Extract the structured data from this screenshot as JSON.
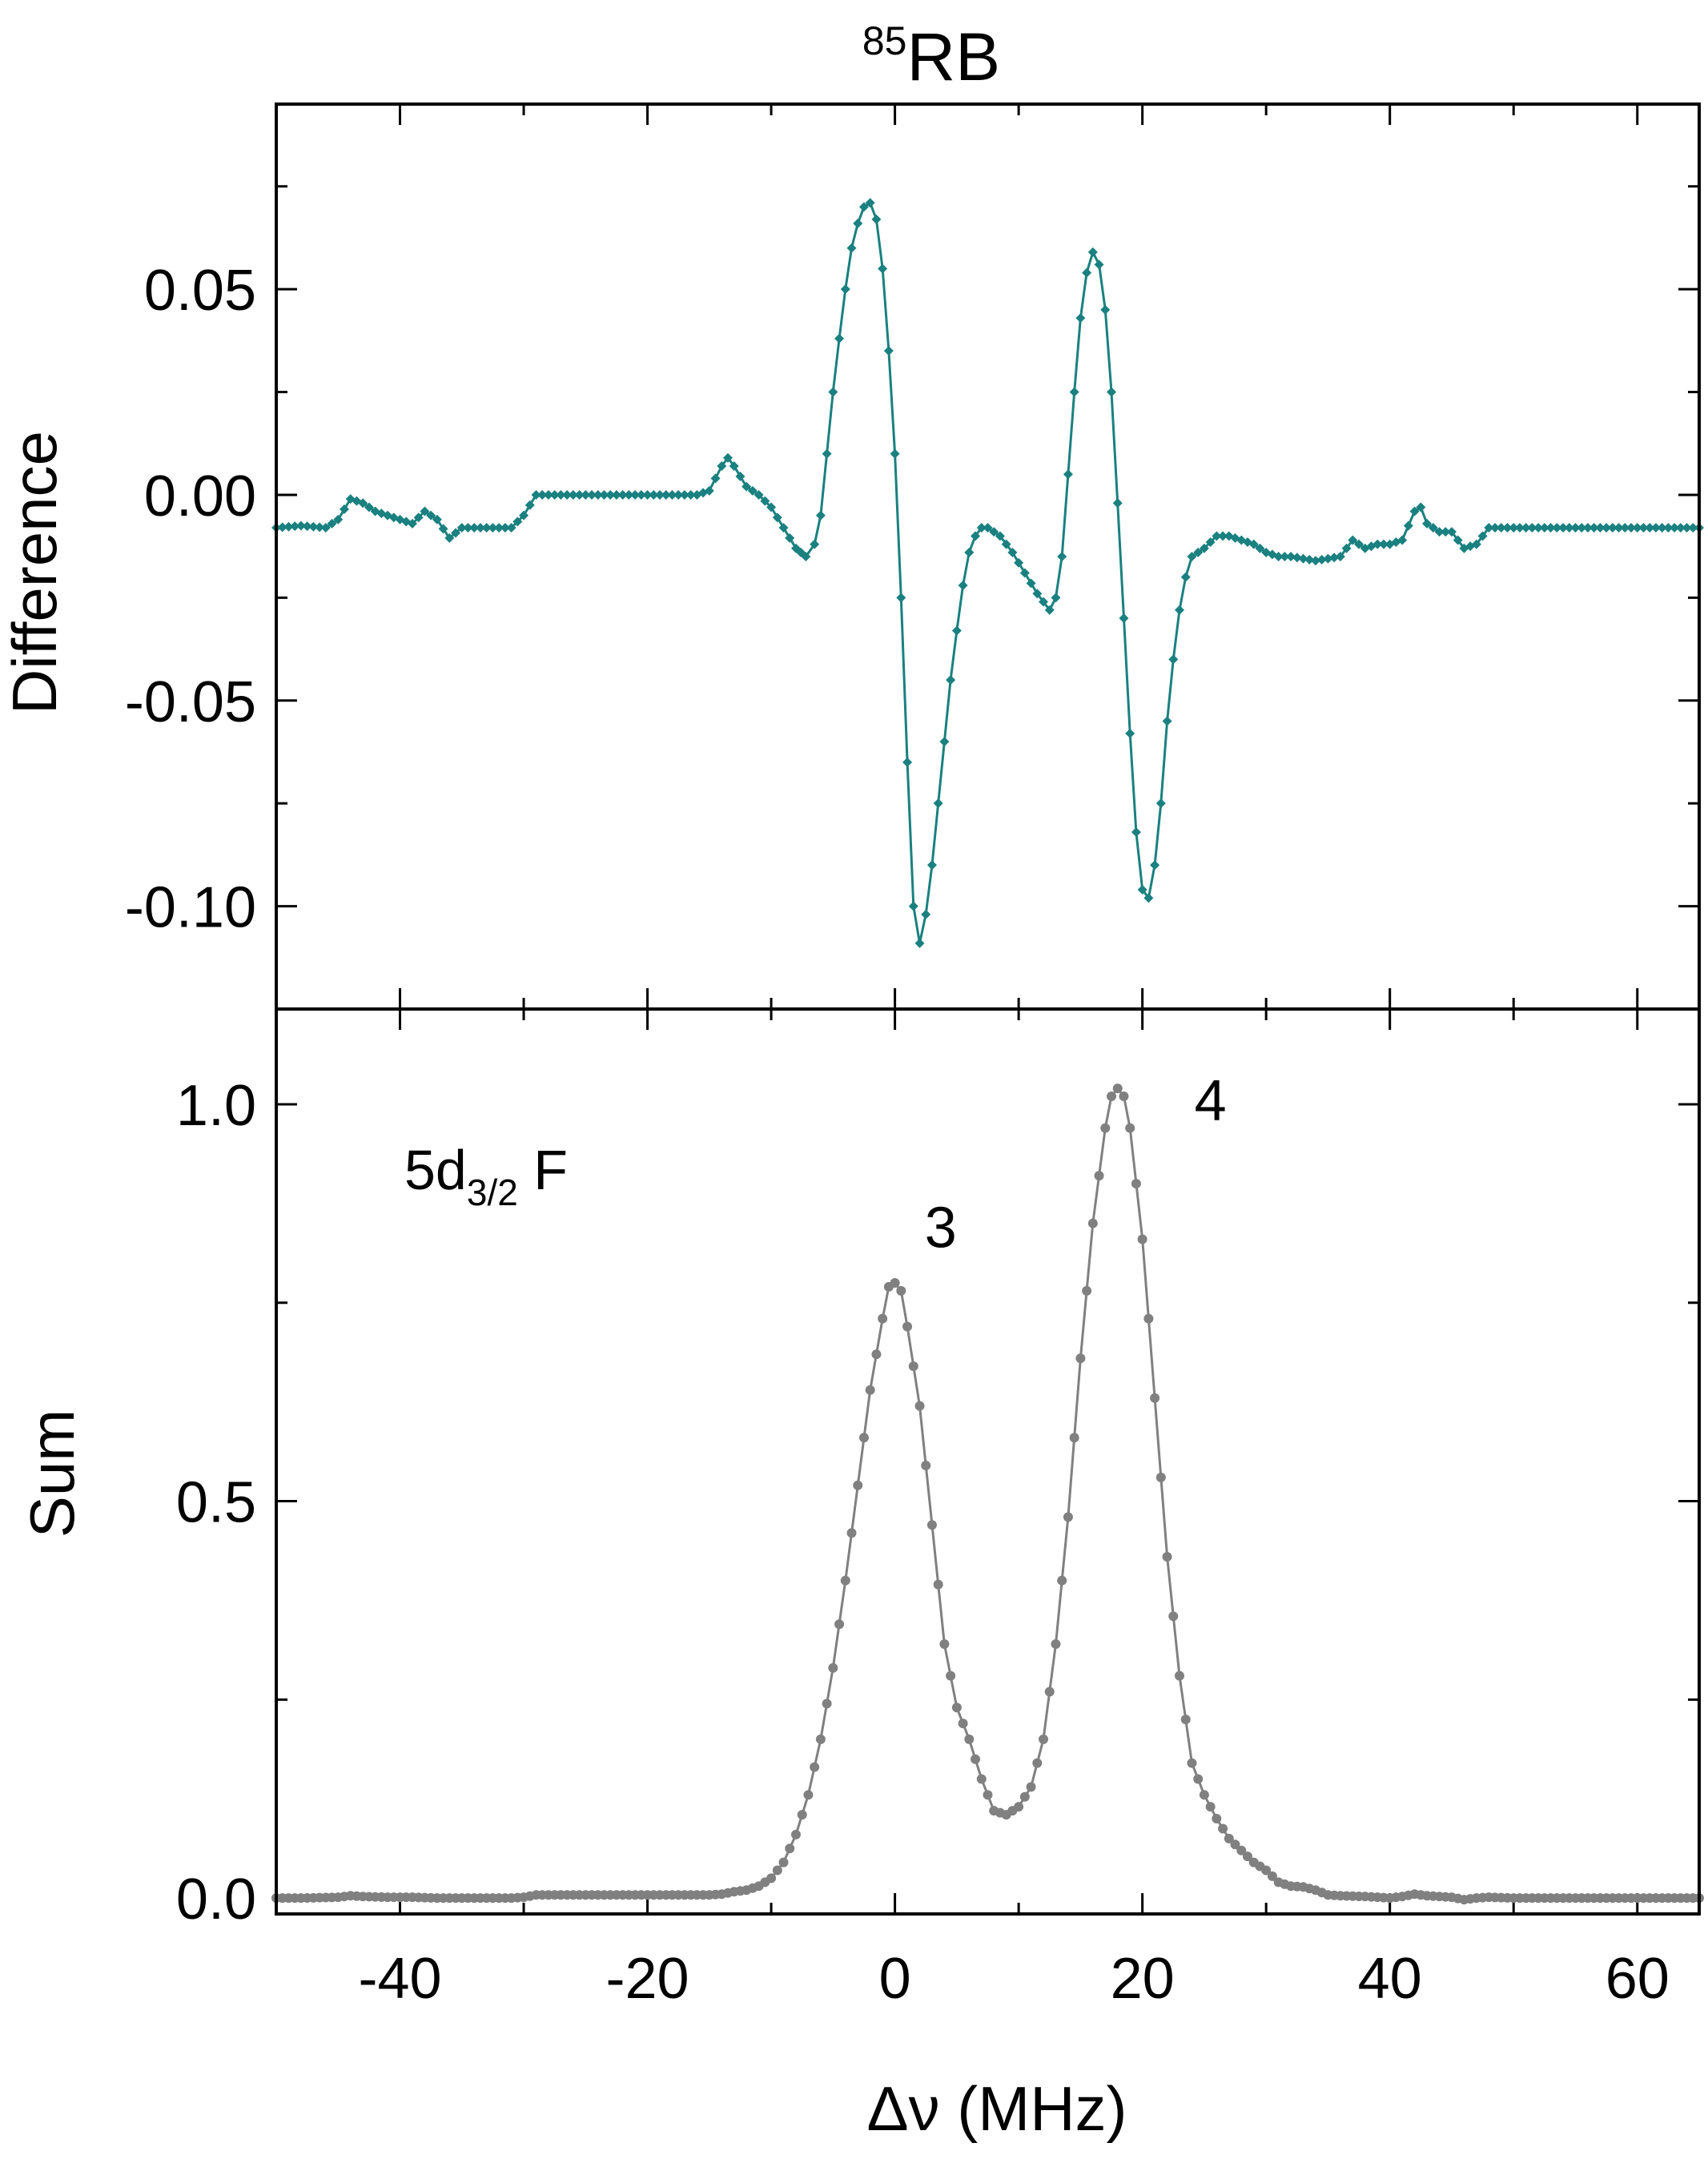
{
  "figure": {
    "title_sup": "85",
    "title_main": "RB",
    "x_label": "Δν (MHz)",
    "x_ticks": [
      "-40",
      "-20",
      "0",
      "20",
      "40",
      "60"
    ],
    "line_label_main": "5d",
    "line_label_sub": "3/2",
    "line_label_tail": " F"
  },
  "chart_data": [
    {
      "type": "line",
      "panel": "top",
      "title": "85RB",
      "ylabel": "Difference",
      "xlabel": "Δν (MHz)",
      "xlim": [
        -50,
        65
      ],
      "ylim": [
        -0.125,
        0.095
      ],
      "y_ticks": [
        "0.05",
        "0.00",
        "-0.05",
        "-0.10"
      ],
      "y_tick_values": [
        0.05,
        0.0,
        -0.05,
        -0.1
      ],
      "color": "#1a8080",
      "marker": "diamond",
      "series": [
        {
          "points": [
            [
              -50,
              -0.008
            ],
            [
              -48,
              -0.0075
            ],
            [
              -46,
              -0.008
            ],
            [
              -45,
              -0.006
            ],
            [
              -44,
              -0.001
            ],
            [
              -43,
              -0.002
            ],
            [
              -42,
              -0.004
            ],
            [
              -41,
              -0.005
            ],
            [
              -40,
              -0.006
            ],
            [
              -39,
              -0.007
            ],
            [
              -38,
              -0.004
            ],
            [
              -37,
              -0.006
            ],
            [
              -36,
              -0.0105
            ],
            [
              -35,
              -0.008
            ],
            [
              -34,
              -0.008
            ],
            [
              -33,
              -0.008
            ],
            [
              -31,
              -0.008
            ],
            [
              -30,
              -0.005
            ],
            [
              -29,
              0
            ],
            [
              -28,
              0
            ],
            [
              -26,
              0
            ],
            [
              -24,
              0
            ],
            [
              -22,
              0
            ],
            [
              -20,
              0
            ],
            [
              -18,
              0
            ],
            [
              -16,
              0
            ],
            [
              -15,
              0.001
            ],
            [
              -14,
              0.007
            ],
            [
              -13.5,
              0.009
            ],
            [
              -13,
              0.007
            ],
            [
              -12,
              0.002
            ],
            [
              -11,
              0
            ],
            [
              -10,
              -0.003
            ],
            [
              -9,
              -0.008
            ],
            [
              -8,
              -0.013
            ],
            [
              -7.2,
              -0.015
            ],
            [
              -6.5,
              -0.012
            ],
            [
              -6,
              -0.005
            ],
            [
              -5.5,
              0.01
            ],
            [
              -5,
              0.025
            ],
            [
              -4.5,
              0.038
            ],
            [
              -4,
              0.05
            ],
            [
              -3.5,
              0.06
            ],
            [
              -3,
              0.066
            ],
            [
              -2.5,
              0.07
            ],
            [
              -2,
              0.071
            ],
            [
              -1.5,
              0.067
            ],
            [
              -1,
              0.055
            ],
            [
              -0.5,
              0.035
            ],
            [
              0,
              0.01
            ],
            [
              0.5,
              -0.025
            ],
            [
              1,
              -0.065
            ],
            [
              1.5,
              -0.1
            ],
            [
              2,
              -0.109
            ],
            [
              2.5,
              -0.102
            ],
            [
              3,
              -0.09
            ],
            [
              3.5,
              -0.075
            ],
            [
              4,
              -0.06
            ],
            [
              4.5,
              -0.045
            ],
            [
              5,
              -0.033
            ],
            [
              5.5,
              -0.022
            ],
            [
              6,
              -0.014
            ],
            [
              6.5,
              -0.01
            ],
            [
              7,
              -0.008
            ],
            [
              7.5,
              -0.008
            ],
            [
              8.5,
              -0.01
            ],
            [
              9.5,
              -0.014
            ],
            [
              10.5,
              -0.019
            ],
            [
              11.5,
              -0.024
            ],
            [
              12.5,
              -0.028
            ],
            [
              13,
              -0.025
            ],
            [
              13.5,
              -0.015
            ],
            [
              14,
              0.005
            ],
            [
              14.5,
              0.025
            ],
            [
              15,
              0.043
            ],
            [
              15.5,
              0.054
            ],
            [
              16,
              0.059
            ],
            [
              16.5,
              0.056
            ],
            [
              17,
              0.045
            ],
            [
              17.5,
              0.025
            ],
            [
              18,
              -0.002
            ],
            [
              18.5,
              -0.03
            ],
            [
              19,
              -0.058
            ],
            [
              19.5,
              -0.082
            ],
            [
              20,
              -0.096
            ],
            [
              20.5,
              -0.098
            ],
            [
              21,
              -0.09
            ],
            [
              21.5,
              -0.075
            ],
            [
              22,
              -0.055
            ],
            [
              22.5,
              -0.04
            ],
            [
              23,
              -0.028
            ],
            [
              23.5,
              -0.02
            ],
            [
              24,
              -0.015
            ],
            [
              25,
              -0.013
            ],
            [
              26,
              -0.01
            ],
            [
              27,
              -0.01
            ],
            [
              28,
              -0.011
            ],
            [
              29,
              -0.012
            ],
            [
              30,
              -0.014
            ],
            [
              31,
              -0.015
            ],
            [
              32,
              -0.015
            ],
            [
              34,
              -0.016
            ],
            [
              36,
              -0.015
            ],
            [
              37,
              -0.011
            ],
            [
              38,
              -0.013
            ],
            [
              39,
              -0.012
            ],
            [
              40,
              -0.012
            ],
            [
              41,
              -0.011
            ],
            [
              42,
              -0.004
            ],
            [
              42.5,
              -0.003
            ],
            [
              43,
              -0.007
            ],
            [
              44,
              -0.009
            ],
            [
              45,
              -0.009
            ],
            [
              46,
              -0.013
            ],
            [
              47,
              -0.012
            ],
            [
              48,
              -0.008
            ],
            [
              50,
              -0.008
            ],
            [
              55,
              -0.008
            ],
            [
              60,
              -0.008
            ],
            [
              65,
              -0.008
            ]
          ]
        }
      ]
    },
    {
      "type": "line",
      "panel": "bottom",
      "ylabel": "Sum",
      "xlabel": "Δν (MHz)",
      "xlim": [
        -50,
        65
      ],
      "ylim": [
        -0.02,
        1.12
      ],
      "y_ticks": [
        "1.0",
        "0.5",
        "0.0"
      ],
      "y_tick_values": [
        1.0,
        0.5,
        0.0
      ],
      "color": "#808080",
      "marker": "circle",
      "annotations": [
        {
          "text": "3",
          "x": 3.7,
          "y": 0.82
        },
        {
          "text": "4",
          "x": 25.5,
          "y": 0.98
        }
      ],
      "series": [
        {
          "points": [
            [
              -50,
              0
            ],
            [
              -48,
              0
            ],
            [
              -45,
              0.001
            ],
            [
              -44,
              0.003
            ],
            [
              -43,
              0.002
            ],
            [
              -41,
              0.001
            ],
            [
              -39,
              0.001
            ],
            [
              -37,
              0
            ],
            [
              -35,
              0
            ],
            [
              -33,
              0
            ],
            [
              -31,
              0
            ],
            [
              -30,
              0.001
            ],
            [
              -29,
              0.004
            ],
            [
              -27,
              0.004
            ],
            [
              -25,
              0.004
            ],
            [
              -20,
              0.004
            ],
            [
              -15,
              0.004
            ],
            [
              -14,
              0.005
            ],
            [
              -13,
              0.008
            ],
            [
              -12,
              0.01
            ],
            [
              -11,
              0.015
            ],
            [
              -10,
              0.025
            ],
            [
              -9,
              0.045
            ],
            [
              -8,
              0.08
            ],
            [
              -7,
              0.13
            ],
            [
              -6,
              0.2
            ],
            [
              -5,
              0.29
            ],
            [
              -4,
              0.4
            ],
            [
              -3,
              0.52
            ],
            [
              -2,
              0.64
            ],
            [
              -1,
              0.73
            ],
            [
              -0.5,
              0.77
            ],
            [
              0,
              0.775
            ],
            [
              0.5,
              0.765
            ],
            [
              1,
              0.72
            ],
            [
              2,
              0.62
            ],
            [
              3,
              0.47
            ],
            [
              4,
              0.32
            ],
            [
              5,
              0.24
            ],
            [
              6,
              0.2
            ],
            [
              7,
              0.15
            ],
            [
              8,
              0.11
            ],
            [
              9,
              0.105
            ],
            [
              10,
              0.115
            ],
            [
              11,
              0.14
            ],
            [
              12,
              0.2
            ],
            [
              13,
              0.32
            ],
            [
              14,
              0.48
            ],
            [
              15,
              0.68
            ],
            [
              16,
              0.85
            ],
            [
              17,
              0.97
            ],
            [
              17.5,
              1.01
            ],
            [
              18,
              1.02
            ],
            [
              18.5,
              1.01
            ],
            [
              19,
              0.97
            ],
            [
              20,
              0.83
            ],
            [
              21,
              0.63
            ],
            [
              22,
              0.43
            ],
            [
              23,
              0.28
            ],
            [
              24,
              0.17
            ],
            [
              25,
              0.13
            ],
            [
              26,
              0.1
            ],
            [
              27,
              0.075
            ],
            [
              28,
              0.06
            ],
            [
              29,
              0.045
            ],
            [
              30,
              0.035
            ],
            [
              31,
              0.02
            ],
            [
              32,
              0.015
            ],
            [
              33,
              0.014
            ],
            [
              34,
              0.01
            ],
            [
              35,
              0.004
            ],
            [
              36,
              0.003
            ],
            [
              38,
              0.002
            ],
            [
              40,
              0
            ],
            [
              41,
              0.002
            ],
            [
              42,
              0.005
            ],
            [
              43,
              0.003
            ],
            [
              44,
              0.002
            ],
            [
              45,
              0.001
            ],
            [
              46,
              -0.002
            ],
            [
              47,
              0
            ],
            [
              48,
              0.001
            ],
            [
              50,
              0
            ],
            [
              55,
              0
            ],
            [
              60,
              0
            ],
            [
              65,
              0
            ]
          ]
        }
      ]
    }
  ]
}
